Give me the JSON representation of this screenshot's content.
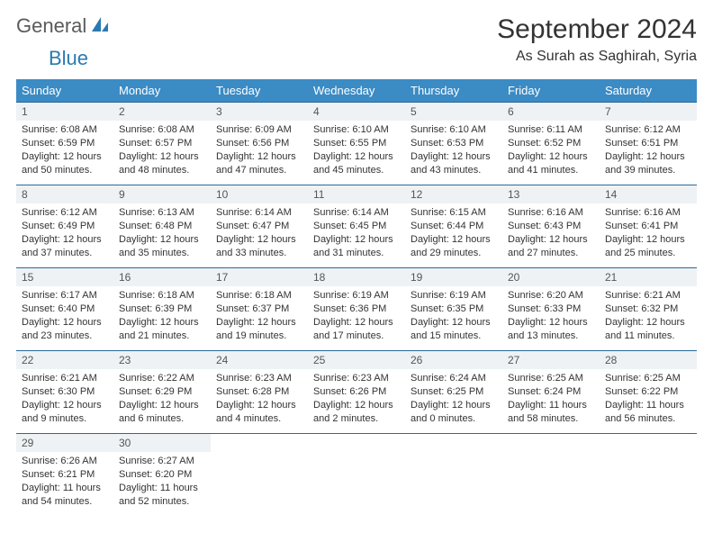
{
  "logo": {
    "text1": "General",
    "text2": "Blue",
    "icon_color": "#2a7ab0"
  },
  "title": "September 2024",
  "location": "As Surah as Saghirah, Syria",
  "colors": {
    "header_bg": "#3b8bc4",
    "header_text": "#ffffff",
    "daynum_bg": "#eef2f4",
    "border": "#2a6a9a",
    "body_text": "#333333"
  },
  "day_headers": [
    "Sunday",
    "Monday",
    "Tuesday",
    "Wednesday",
    "Thursday",
    "Friday",
    "Saturday"
  ],
  "weeks": [
    [
      {
        "n": "1",
        "sr": "6:08 AM",
        "ss": "6:59 PM",
        "dl": "12 hours and 50 minutes."
      },
      {
        "n": "2",
        "sr": "6:08 AM",
        "ss": "6:57 PM",
        "dl": "12 hours and 48 minutes."
      },
      {
        "n": "3",
        "sr": "6:09 AM",
        "ss": "6:56 PM",
        "dl": "12 hours and 47 minutes."
      },
      {
        "n": "4",
        "sr": "6:10 AM",
        "ss": "6:55 PM",
        "dl": "12 hours and 45 minutes."
      },
      {
        "n": "5",
        "sr": "6:10 AM",
        "ss": "6:53 PM",
        "dl": "12 hours and 43 minutes."
      },
      {
        "n": "6",
        "sr": "6:11 AM",
        "ss": "6:52 PM",
        "dl": "12 hours and 41 minutes."
      },
      {
        "n": "7",
        "sr": "6:12 AM",
        "ss": "6:51 PM",
        "dl": "12 hours and 39 minutes."
      }
    ],
    [
      {
        "n": "8",
        "sr": "6:12 AM",
        "ss": "6:49 PM",
        "dl": "12 hours and 37 minutes."
      },
      {
        "n": "9",
        "sr": "6:13 AM",
        "ss": "6:48 PM",
        "dl": "12 hours and 35 minutes."
      },
      {
        "n": "10",
        "sr": "6:14 AM",
        "ss": "6:47 PM",
        "dl": "12 hours and 33 minutes."
      },
      {
        "n": "11",
        "sr": "6:14 AM",
        "ss": "6:45 PM",
        "dl": "12 hours and 31 minutes."
      },
      {
        "n": "12",
        "sr": "6:15 AM",
        "ss": "6:44 PM",
        "dl": "12 hours and 29 minutes."
      },
      {
        "n": "13",
        "sr": "6:16 AM",
        "ss": "6:43 PM",
        "dl": "12 hours and 27 minutes."
      },
      {
        "n": "14",
        "sr": "6:16 AM",
        "ss": "6:41 PM",
        "dl": "12 hours and 25 minutes."
      }
    ],
    [
      {
        "n": "15",
        "sr": "6:17 AM",
        "ss": "6:40 PM",
        "dl": "12 hours and 23 minutes."
      },
      {
        "n": "16",
        "sr": "6:18 AM",
        "ss": "6:39 PM",
        "dl": "12 hours and 21 minutes."
      },
      {
        "n": "17",
        "sr": "6:18 AM",
        "ss": "6:37 PM",
        "dl": "12 hours and 19 minutes."
      },
      {
        "n": "18",
        "sr": "6:19 AM",
        "ss": "6:36 PM",
        "dl": "12 hours and 17 minutes."
      },
      {
        "n": "19",
        "sr": "6:19 AM",
        "ss": "6:35 PM",
        "dl": "12 hours and 15 minutes."
      },
      {
        "n": "20",
        "sr": "6:20 AM",
        "ss": "6:33 PM",
        "dl": "12 hours and 13 minutes."
      },
      {
        "n": "21",
        "sr": "6:21 AM",
        "ss": "6:32 PM",
        "dl": "12 hours and 11 minutes."
      }
    ],
    [
      {
        "n": "22",
        "sr": "6:21 AM",
        "ss": "6:30 PM",
        "dl": "12 hours and 9 minutes."
      },
      {
        "n": "23",
        "sr": "6:22 AM",
        "ss": "6:29 PM",
        "dl": "12 hours and 6 minutes."
      },
      {
        "n": "24",
        "sr": "6:23 AM",
        "ss": "6:28 PM",
        "dl": "12 hours and 4 minutes."
      },
      {
        "n": "25",
        "sr": "6:23 AM",
        "ss": "6:26 PM",
        "dl": "12 hours and 2 minutes."
      },
      {
        "n": "26",
        "sr": "6:24 AM",
        "ss": "6:25 PM",
        "dl": "12 hours and 0 minutes."
      },
      {
        "n": "27",
        "sr": "6:25 AM",
        "ss": "6:24 PM",
        "dl": "11 hours and 58 minutes."
      },
      {
        "n": "28",
        "sr": "6:25 AM",
        "ss": "6:22 PM",
        "dl": "11 hours and 56 minutes."
      }
    ],
    [
      {
        "n": "29",
        "sr": "6:26 AM",
        "ss": "6:21 PM",
        "dl": "11 hours and 54 minutes."
      },
      {
        "n": "30",
        "sr": "6:27 AM",
        "ss": "6:20 PM",
        "dl": "11 hours and 52 minutes."
      },
      null,
      null,
      null,
      null,
      null
    ]
  ],
  "labels": {
    "sunrise": "Sunrise:",
    "sunset": "Sunset:",
    "daylight": "Daylight:"
  }
}
